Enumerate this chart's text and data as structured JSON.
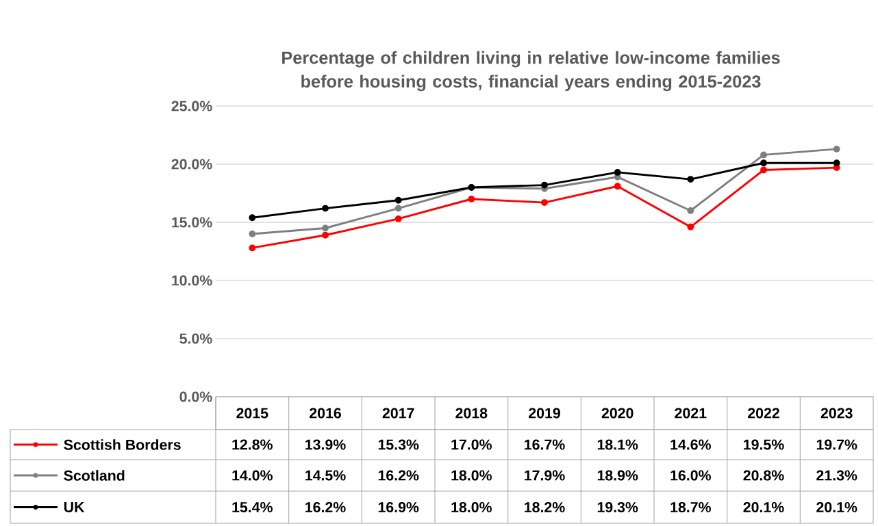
{
  "chart_data": {
    "type": "line",
    "title": "Percentage of children living in relative low-income families before housing costs, financial years ending 2015-2023",
    "categories": [
      "2015",
      "2016",
      "2017",
      "2018",
      "2019",
      "2020",
      "2021",
      "2022",
      "2023"
    ],
    "series": [
      {
        "name": "Scottish Borders",
        "color": "#ff0000",
        "values": [
          12.8,
          13.9,
          15.3,
          17.0,
          16.7,
          18.1,
          14.6,
          19.5,
          19.7
        ],
        "value_labels": [
          "12.8%",
          "13.9%",
          "15.3%",
          "17.0%",
          "16.7%",
          "18.1%",
          "14.6%",
          "19.5%",
          "19.7%"
        ]
      },
      {
        "name": "Scotland",
        "color": "#7f7f7f",
        "values": [
          14.0,
          14.5,
          16.2,
          18.0,
          17.9,
          18.9,
          16.0,
          20.8,
          21.3
        ],
        "value_labels": [
          "14.0%",
          "14.5%",
          "16.2%",
          "18.0%",
          "17.9%",
          "18.9%",
          "16.0%",
          "20.8%",
          "21.3%"
        ]
      },
      {
        "name": "UK",
        "color": "#000000",
        "values": [
          15.4,
          16.2,
          16.9,
          18.0,
          18.2,
          19.3,
          18.7,
          20.1,
          20.1
        ],
        "value_labels": [
          "15.4%",
          "16.2%",
          "16.9%",
          "18.0%",
          "18.2%",
          "19.3%",
          "18.7%",
          "20.1%",
          "20.1%"
        ]
      }
    ],
    "ylim": [
      0,
      25
    ],
    "yticks": [
      {
        "value": 0,
        "label": "0.0%"
      },
      {
        "value": 5,
        "label": "5.0%"
      },
      {
        "value": 10,
        "label": "10.0%"
      },
      {
        "value": 15,
        "label": "15.0%"
      },
      {
        "value": 20,
        "label": "20.0%"
      },
      {
        "value": 25,
        "label": "25.0%"
      }
    ],
    "grid": "y",
    "legend": "bottom",
    "marker": "circle",
    "line_style": "solid"
  }
}
